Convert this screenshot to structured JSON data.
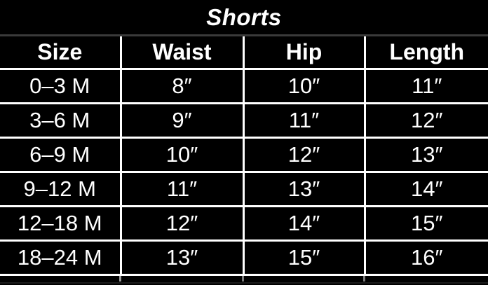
{
  "chart_data": {
    "type": "table",
    "title": "Shorts",
    "columns": [
      "Size",
      "Waist",
      "Hip",
      "Length"
    ],
    "rows": [
      [
        "0–3 M",
        "8″",
        "10″",
        "11″"
      ],
      [
        "3–6 M",
        "9″",
        "11″",
        "12″"
      ],
      [
        "6–9 M",
        "10″",
        "12″",
        "13″"
      ],
      [
        "9–12 M",
        "11″",
        "13″",
        "14″"
      ],
      [
        "12–18 M",
        "12″",
        "14″",
        "15″"
      ],
      [
        "18–24 M",
        "13″",
        "15″",
        "16″"
      ]
    ]
  },
  "colors": {
    "background": "#000000",
    "text": "#ffffff",
    "grid_line": "#ffffff",
    "title_divider": "#3a3a3a"
  }
}
